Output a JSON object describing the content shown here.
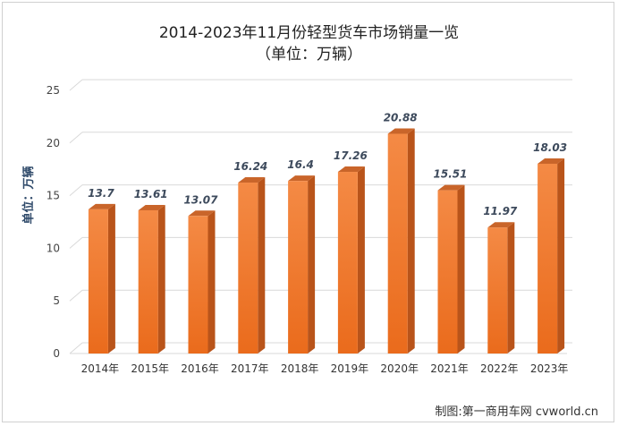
{
  "chart_data": {
    "type": "bar",
    "title": "2014-2023年11月份轻型货车市场销量一览",
    "subtitle": "（单位：万辆）",
    "ylabel": "单位：万辆",
    "xlabel": "",
    "categories": [
      "2014年",
      "2015年",
      "2016年",
      "2017年",
      "2018年",
      "2019年",
      "2020年",
      "2021年",
      "2022年",
      "2023年"
    ],
    "values": [
      13.7,
      13.61,
      13.07,
      16.24,
      16.4,
      17.26,
      20.88,
      15.51,
      11.97,
      18.03
    ],
    "value_labels": [
      "13.7",
      "13.61",
      "13.07",
      "16.24",
      "16.4",
      "17.26",
      "20.88",
      "15.51",
      "11.97",
      "18.03"
    ],
    "y_ticks": [
      "0",
      "5",
      "10",
      "15",
      "20",
      "25"
    ],
    "ylim": [
      0,
      25
    ],
    "grid": true,
    "legend": "none",
    "colors": {
      "bar": "#f07a2e",
      "bar_side": "#b9541a",
      "bar_top": "#c9652a",
      "label": "#3d4a5c"
    }
  },
  "watermark": "制图:第一商用车网 cvworld.cn"
}
